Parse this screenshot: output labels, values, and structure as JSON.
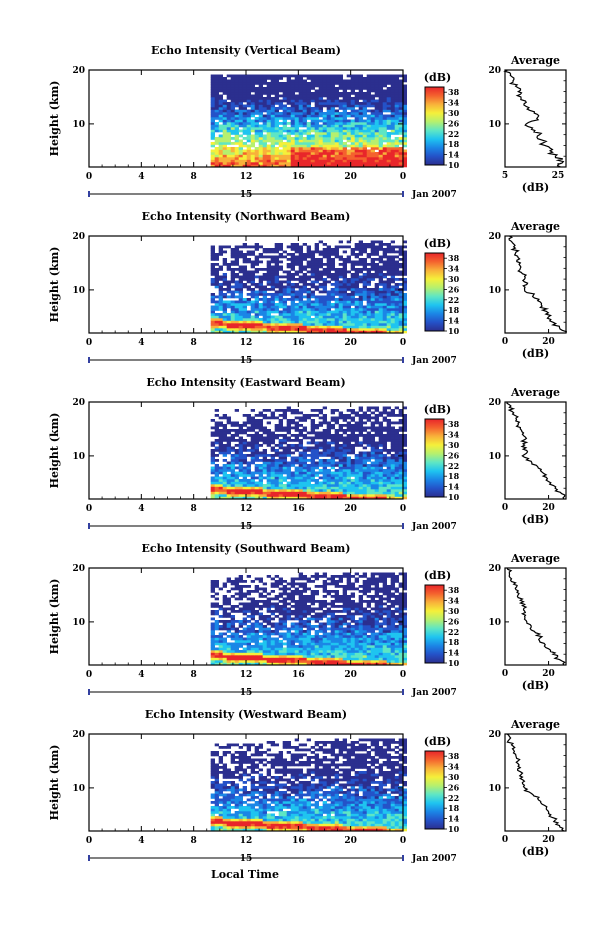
{
  "figure": {
    "footer_xlabel": "Local Time",
    "date_label": "Jan 2007",
    "day_label": "15",
    "colorbar_unit": "(dB)",
    "colorbar_ticks": [
      "10",
      "14",
      "18",
      "22",
      "26",
      "30",
      "34",
      "38"
    ],
    "colorbar_range": [
      10,
      40
    ],
    "colormap": [
      "#2b2f8f",
      "#2452c8",
      "#1b86e6",
      "#1fc4f0",
      "#5fe6c4",
      "#b6f06e",
      "#f5f03a",
      "#f8b13a",
      "#f4622e",
      "#e8262a"
    ],
    "average_title": "Average",
    "average_xlabel": "(dB)",
    "height_label": "Height (km)"
  },
  "chart_data": [
    {
      "type": "heatmap",
      "title": "Echo Intensity (Vertical Beam)",
      "ylabel": "Height (km)",
      "xlim": [
        0,
        24
      ],
      "ylim": [
        2,
        20
      ],
      "xticks": [
        "0",
        "4",
        "8",
        "12",
        "16",
        "20",
        "0"
      ],
      "yticks": [
        "10",
        "20"
      ],
      "data_start_hour": 9.3,
      "profile": {
        "title": "Average",
        "xlabel": "(dB)",
        "xlim": [
          5,
          28
        ],
        "xticks": [
          "5",
          "25"
        ],
        "height": [
          2,
          3,
          4,
          5,
          6,
          7,
          8,
          9,
          10,
          11,
          12,
          13,
          14,
          15,
          16,
          17,
          18,
          19,
          20
        ],
        "value": [
          26,
          27,
          24,
          22,
          20,
          19,
          18,
          15,
          13,
          17,
          16,
          14,
          13,
          11,
          10,
          9,
          8,
          7,
          6
        ]
      }
    },
    {
      "type": "heatmap",
      "title": "Echo Intensity (Northward Beam)",
      "ylabel": "Height (km)",
      "xlim": [
        0,
        24
      ],
      "ylim": [
        2,
        20
      ],
      "xticks": [
        "0",
        "4",
        "8",
        "12",
        "16",
        "20",
        "0"
      ],
      "yticks": [
        "10",
        "20"
      ],
      "data_start_hour": 9.3,
      "profile": {
        "title": "Average",
        "xlabel": "(dB)",
        "xlim": [
          0,
          28
        ],
        "xticks": [
          "0",
          "20"
        ],
        "height": [
          2,
          3,
          4,
          5,
          6,
          7,
          8,
          9,
          10,
          11,
          12,
          13,
          14,
          15,
          16,
          17,
          18,
          19,
          20
        ],
        "value": [
          28,
          25,
          22,
          20,
          19,
          17,
          15,
          13,
          9,
          10,
          9,
          8,
          7,
          7,
          6,
          5,
          4,
          3,
          2
        ]
      }
    },
    {
      "type": "heatmap",
      "title": "Echo Intensity (Eastward Beam)",
      "ylabel": "Height (km)",
      "xlim": [
        0,
        24
      ],
      "ylim": [
        2,
        20
      ],
      "xticks": [
        "0",
        "4",
        "8",
        "12",
        "16",
        "20",
        "0"
      ],
      "yticks": [
        "10",
        "20"
      ],
      "data_start_hour": 9.3,
      "profile": {
        "title": "Average",
        "xlabel": "(dB)",
        "xlim": [
          0,
          28
        ],
        "xticks": [
          "0",
          "20"
        ],
        "height": [
          2,
          3,
          4,
          5,
          6,
          7,
          8,
          9,
          10,
          11,
          12,
          13,
          14,
          15,
          16,
          17,
          18,
          19,
          20
        ],
        "value": [
          27,
          26,
          23,
          21,
          19,
          17,
          15,
          12,
          8,
          10,
          9,
          9,
          8,
          7,
          6,
          5,
          4,
          2,
          1
        ]
      }
    },
    {
      "type": "heatmap",
      "title": "Echo Intensity (Southward Beam)",
      "ylabel": "Height (km)",
      "xlim": [
        0,
        24
      ],
      "ylim": [
        2,
        20
      ],
      "xticks": [
        "0",
        "4",
        "8",
        "12",
        "16",
        "20",
        "0"
      ],
      "yticks": [
        "10",
        "20"
      ],
      "data_start_hour": 9.3,
      "profile": {
        "title": "Average",
        "xlabel": "(dB)",
        "xlim": [
          0,
          28
        ],
        "xticks": [
          "0",
          "20"
        ],
        "height": [
          2,
          3,
          4,
          5,
          6,
          7,
          8,
          9,
          10,
          11,
          12,
          13,
          14,
          15,
          16,
          17,
          18,
          19,
          20
        ],
        "value": [
          27,
          25,
          22,
          20,
          18,
          16,
          14,
          12,
          10,
          9,
          9,
          8,
          7,
          6,
          5,
          4,
          3,
          2,
          1
        ]
      }
    },
    {
      "type": "heatmap",
      "title": "Echo Intensity (Westward Beam)",
      "ylabel": "Height (km)",
      "xlim": [
        0,
        24
      ],
      "ylim": [
        2,
        20
      ],
      "xticks": [
        "0",
        "4",
        "8",
        "12",
        "16",
        "20",
        "0"
      ],
      "yticks": [
        "10",
        "20"
      ],
      "data_start_hour": 9.3,
      "profile": {
        "title": "Average",
        "xlabel": "(dB)",
        "xlim": [
          0,
          28
        ],
        "xticks": [
          "0",
          "20"
        ],
        "height": [
          2,
          3,
          4,
          5,
          6,
          7,
          8,
          9,
          10,
          11,
          12,
          13,
          14,
          15,
          16,
          17,
          18,
          19,
          20
        ],
        "value": [
          27,
          25,
          23,
          21,
          19,
          17,
          15,
          12,
          9,
          8,
          8,
          7,
          6,
          6,
          5,
          4,
          3,
          2,
          1
        ]
      }
    }
  ]
}
